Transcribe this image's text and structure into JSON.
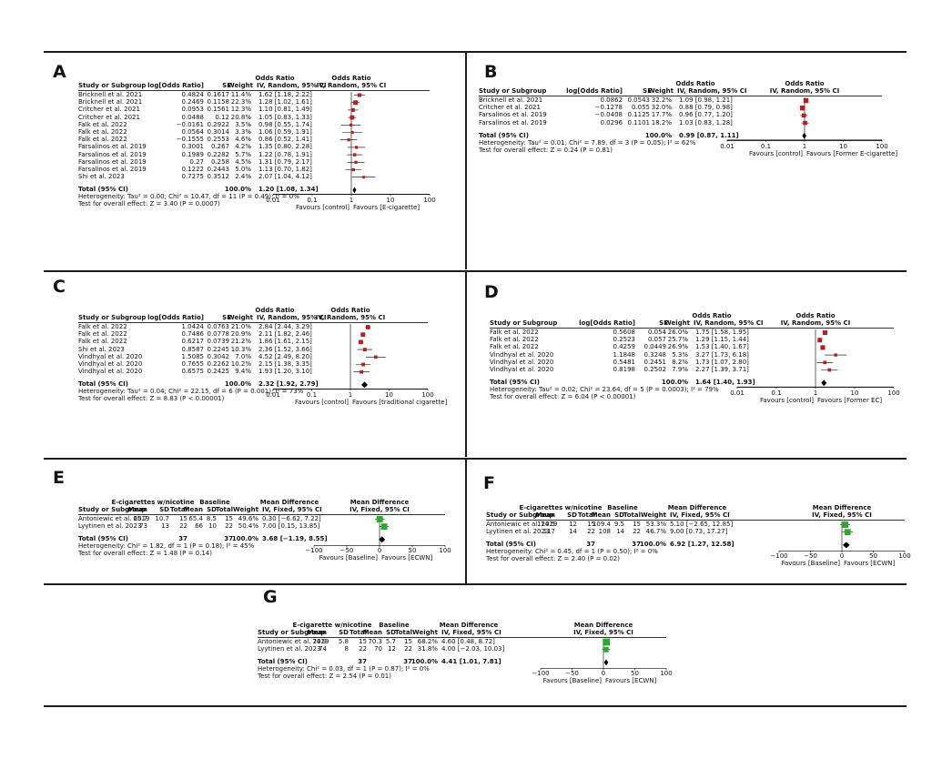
{
  "colors": {
    "rule": "#1a1a1a",
    "random_box": "#b42020",
    "fixed_box": "#2fa82f",
    "line": "#000000"
  },
  "panels": {
    "A": {
      "letter": "A",
      "model": "random",
      "header_over": "Odds Ratio",
      "plot_header_over": "Odds Ratio",
      "cols": [
        "Study or Subgroup",
        "log[Odds Ratio]",
        "SE",
        "Weight",
        "IV, Random, 95% CI",
        "IV, Random, 95% CI"
      ],
      "rows": [
        {
          "study": "Bricknell et al. 2021",
          "v1": "0.4824",
          "v2": "0.1617",
          "weight": "11.4%",
          "ci": "1.62 [1.18, 2.22]"
        },
        {
          "study": "Bricknell et al. 2021",
          "v1": "0.2469",
          "v2": "0.1158",
          "weight": "22.3%",
          "ci": "1.28 [1.02, 1.61]"
        },
        {
          "study": "Critcher et al. 2021",
          "v1": "0.0953",
          "v2": "0.1561",
          "weight": "12.3%",
          "ci": "1.10 [0.81, 1.49]"
        },
        {
          "study": "Critcher et al. 2021",
          "v1": "0.0488",
          "v2": "0.12",
          "weight": "20.8%",
          "ci": "1.05 [0.83, 1.33]"
        },
        {
          "study": "Falk et al. 2022",
          "v1": "−0.0161",
          "v2": "0.2922",
          "weight": "3.5%",
          "ci": "0.98 [0.55, 1.74]"
        },
        {
          "study": "Falk et al. 2022",
          "v1": "0.0564",
          "v2": "0.3014",
          "weight": "3.3%",
          "ci": "1.06 [0.59, 1.91]"
        },
        {
          "study": "Falk et al. 2022",
          "v1": "−0.1555",
          "v2": "0.2553",
          "weight": "4.6%",
          "ci": "0.86 [0.52, 1.41]"
        },
        {
          "study": "Farsalinos et al. 2019",
          "v1": "0.3001",
          "v2": "0.267",
          "weight": "4.2%",
          "ci": "1.35 [0.80, 2.28]"
        },
        {
          "study": "Farsalinos et al. 2019",
          "v1": "0.1989",
          "v2": "0.2282",
          "weight": "5.7%",
          "ci": "1.22 [0.78, 1.91]"
        },
        {
          "study": "Farsalinos et al. 2019",
          "v1": "0.27",
          "v2": "0.258",
          "weight": "4.5%",
          "ci": "1.31 [0.79, 2.17]"
        },
        {
          "study": "Farsalinos et al. 2019",
          "v1": "0.1222",
          "v2": "0.2443",
          "weight": "5.0%",
          "ci": "1.13 [0.70, 1.82]"
        },
        {
          "study": "Shi et al. 2023",
          "v1": "0.7275",
          "v2": "0.3512",
          "weight": "2.4%",
          "ci": "2.07 [1.04, 4.12]"
        }
      ],
      "total": {
        "label": "Total (95% CI)",
        "weight": "100.0%",
        "ci": "1.20 [1.08, 1.34]"
      },
      "heterogeneity": "Heterogeneity: Tau² = 0.00; Chi² = 10.47, df = 11 (P = 0.49); I² = 0%",
      "overall": "Test for overall effect: Z = 3.40 (P = 0.0007)",
      "axis_ticks": [
        "0.01",
        "0.1",
        "1",
        "10",
        "100"
      ],
      "axis_left": "Favours [control]",
      "axis_right": "Favours [E-cigarette]"
    },
    "B": {
      "letter": "B",
      "model": "random",
      "header_over": "Odds Ratio",
      "plot_header_over": "Odds Ratio",
      "cols": [
        "Study or Subgroup",
        "log[Odds Ratio]",
        "SE",
        "Weight",
        "IV, Random, 95% CI",
        "IV, Random, 95% CI"
      ],
      "rows": [
        {
          "study": "Bricknell et al. 2021",
          "v1": "0.0862",
          "v2": "0.0543",
          "weight": "32.2%",
          "ci": "1.09 [0.98, 1.21]"
        },
        {
          "study": "Critcher et al. 2021",
          "v1": "−0.1278",
          "v2": "0.055",
          "weight": "32.0%",
          "ci": "0.88 [0.79, 0.98]"
        },
        {
          "study": "Farsalinos et al. 2019",
          "v1": "−0.0408",
          "v2": "0.1125",
          "weight": "17.7%",
          "ci": "0.96 [0.77, 1.20]"
        },
        {
          "study": "Farsalinos et al. 2019",
          "v1": "0.0296",
          "v2": "0.1101",
          "weight": "18.2%",
          "ci": "1.03 [0.83, 1.28]"
        }
      ],
      "total": {
        "label": "Total (95% CI)",
        "weight": "100.0%",
        "ci": "0.99 [0.87, 1.11]"
      },
      "heterogeneity": "Heterogeneity: Tau² = 0.01; Chi² = 7.89, df = 3 (P = 0.05); I² = 62%",
      "overall": "Test for overall effect: Z = 0.24 (P = 0.81)",
      "axis_ticks": [
        "0.01",
        "0.1",
        "1",
        "10",
        "100"
      ],
      "axis_left": "Favours [control]",
      "axis_right": "Favours [Former E-cigarette]"
    },
    "C": {
      "letter": "C",
      "model": "random",
      "header_over": "Odds Ratio",
      "plot_header_over": "Odds Ratio",
      "cols": [
        "Study or Subgroup",
        "log[Odds Ratio]",
        "SE",
        "Weight",
        "IV, Random, 95% CI",
        "IV, Random, 95% CI"
      ],
      "rows": [
        {
          "study": "Falk et al. 2022",
          "v1": "1.0424",
          "v2": "0.0763",
          "weight": "21.0%",
          "ci": "2.84 [2.44, 3.29]"
        },
        {
          "study": "Falk et al. 2022",
          "v1": "0.7486",
          "v2": "0.0778",
          "weight": "20.9%",
          "ci": "2.11 [1.82, 2.46]"
        },
        {
          "study": "Falk et al. 2022",
          "v1": "0.6217",
          "v2": "0.0739",
          "weight": "21.2%",
          "ci": "1.86 [1.61, 2.15]"
        },
        {
          "study": "Shi et al. 2023",
          "v1": "0.8587",
          "v2": "0.2245",
          "weight": "10.3%",
          "ci": "2.36 [1.52, 3.66]"
        },
        {
          "study": "Vindhyal et al. 2020",
          "v1": "1.5085",
          "v2": "0.3042",
          "weight": "7.0%",
          "ci": "4.52 [2.49, 8.20]"
        },
        {
          "study": "Vindhyal et al. 2020",
          "v1": "0.7655",
          "v2": "0.2262",
          "weight": "10.2%",
          "ci": "2.15 [1.38, 3.35]"
        },
        {
          "study": "Vindhyal et al. 2020",
          "v1": "0.6575",
          "v2": "0.2425",
          "weight": "9.4%",
          "ci": "1.93 [1.20, 3.10]"
        }
      ],
      "total": {
        "label": "Total (95% CI)",
        "weight": "100.0%",
        "ci": "2.32 [1.92, 2.79]"
      },
      "heterogeneity": "Heterogeneity: Tau² = 0.04; Chi² = 22.15, df = 6 (P = 0.001); I² = 73%",
      "overall": "Test for overall effect: Z = 8.83 (P < 0.00001)",
      "axis_ticks": [
        "0.01",
        "0.1",
        "1",
        "10",
        "100"
      ],
      "axis_left": "Favours [control]",
      "axis_right": "Favours [traditional cigarette]"
    },
    "D": {
      "letter": "D",
      "model": "random",
      "header_over": "Odds Ratio",
      "plot_header_over": "Odds Ratio",
      "cols": [
        "Study or Subgroup",
        "log[Odds Ratio]",
        "SE",
        "Weight",
        "IV, Random, 95% CI",
        "IV, Random, 95% CI"
      ],
      "rows": [
        {
          "study": "Falk et al. 2022",
          "v1": "0.5608",
          "v2": "0.054",
          "weight": "26.0%",
          "ci": "1.75 [1.58, 1.95]"
        },
        {
          "study": "Falk et al. 2022",
          "v1": "0.2523",
          "v2": "0.057",
          "weight": "25.7%",
          "ci": "1.29 [1.15, 1.44]"
        },
        {
          "study": "Falk et al. 2022",
          "v1": "0.4259",
          "v2": "0.0449",
          "weight": "26.9%",
          "ci": "1.53 [1.40, 1.67]"
        },
        {
          "study": "Vindhyal et al. 2020",
          "v1": "1.1848",
          "v2": "0.3248",
          "weight": "5.3%",
          "ci": "3.27 [1.73, 6.18]"
        },
        {
          "study": "Vindhyal et al. 2020",
          "v1": "0.5481",
          "v2": "0.2451",
          "weight": "8.2%",
          "ci": "1.73 [1.07, 2.80]"
        },
        {
          "study": "Vindhyal et al. 2020",
          "v1": "0.8198",
          "v2": "0.2502",
          "weight": "7.9%",
          "ci": "2.27 [1.39, 3.71]"
        }
      ],
      "total": {
        "label": "Total (95% CI)",
        "weight": "100.0%",
        "ci": "1.64 [1.40, 1.93]"
      },
      "heterogeneity": "Heterogeneity: Tau² = 0.02; Chi² = 23.64, df = 5 (P = 0.0003); I² = 79%",
      "overall": "Test for overall effect: Z = 6.04 (P < 0.00001)",
      "axis_ticks": [
        "0.01",
        "0.1",
        "1",
        "10",
        "100"
      ],
      "axis_left": "Favours [control]",
      "axis_right": "Favours [Former EC]"
    },
    "E": {
      "letter": "E",
      "model": "fixed",
      "group1": "E-cigarettes w/nicotine",
      "group2": "Baseline",
      "header_over": "Mean Difference",
      "plot_header_over": "Mean Difference",
      "cols": [
        "Study or Subgroup",
        "Mean",
        "SD",
        "Total",
        "Mean",
        "SD",
        "Total",
        "Weight",
        "IV, Fixed, 95% CI",
        "IV, Fixed, 95% CI"
      ],
      "rows": [
        {
          "study": "Antoniewic et al. 2019",
          "m1": "65.7",
          "sd1": "10.7",
          "n1": "15",
          "m2": "65.4",
          "sd2": "8.5",
          "n2": "15",
          "weight": "49.6%",
          "ci": "0.30 [−6.62, 7.22]"
        },
        {
          "study": "Lyytinen et al. 2023",
          "m1": "73",
          "sd1": "13",
          "n1": "22",
          "m2": "66",
          "sd2": "10",
          "n2": "22",
          "weight": "50.4%",
          "ci": "7.00 [0.15, 13.85]"
        }
      ],
      "total": {
        "label": "Total (95% CI)",
        "n1": "37",
        "n2": "37",
        "weight": "100.0%",
        "ci": "3.68 [−1.19, 8.55]"
      },
      "heterogeneity": "Heterogeneity: Chi² = 1.82, df = 1 (P = 0.18); I² = 45%",
      "overall": "Test for overall effect: Z = 1.48 (P = 0.14)",
      "axis_ticks": [
        "−100",
        "−50",
        "0",
        "50",
        "100"
      ],
      "axis_left": "Favours [Baseline]",
      "axis_right": "Favours [ECWN]"
    },
    "F": {
      "letter": "F",
      "model": "fixed",
      "group1": "E-cigarettes w/nicotine",
      "group2": "Baseline",
      "header_over": "Mean Difference",
      "plot_header_over": "Mean Difference",
      "cols": [
        "Study or Subgroup",
        "Mean",
        "SD",
        "Total",
        "Mean",
        "SD",
        "Total",
        "Weight",
        "IV, Fixed, 95% CI",
        "IV, Fixed, 95% CI"
      ],
      "rows": [
        {
          "study": "Antoniewic et al. 2019",
          "m1": "114.5",
          "sd1": "12",
          "n1": "15",
          "m2": "109.4",
          "sd2": "9.5",
          "n2": "15",
          "weight": "53.3%",
          "ci": "5.10 [−2.65, 12.85]"
        },
        {
          "study": "Lyytinen et al. 2023",
          "m1": "117",
          "sd1": "14",
          "n1": "22",
          "m2": "108",
          "sd2": "14",
          "n2": "22",
          "weight": "46.7%",
          "ci": "9.00 [0.73, 17.27]"
        }
      ],
      "total": {
        "label": "Total (95% CI)",
        "n1": "37",
        "n2": "37",
        "weight": "100.0%",
        "ci": "6.92 [1.27, 12.58]"
      },
      "heterogeneity": "Heterogeneity: Chi² = 0.45, df = 1 (P = 0.50); I² = 0%",
      "overall": "Test for overall effect: Z = 2.40 (P = 0.02)",
      "axis_ticks": [
        "−100",
        "−50",
        "0",
        "50",
        "100"
      ],
      "axis_left": "Favours [Baseline]",
      "axis_right": "Favours [ECWN]"
    },
    "G": {
      "letter": "G",
      "model": "fixed",
      "group1": "E-cigarette w/nicotine",
      "group2": "Baseline",
      "header_over": "Mean Difference",
      "plot_header_over": "Mean Difference",
      "cols": [
        "Study or Subgroup",
        "Mean",
        "SD",
        "Total",
        "Mean",
        "SD",
        "Total",
        "Weight",
        "IV, Fixed, 95% CI",
        "IV, Fixed, 95% CI"
      ],
      "rows": [
        {
          "study": "Antoniewic et al. 2019",
          "m1": "74.9",
          "sd1": "5.8",
          "n1": "15",
          "m2": "70.3",
          "sd2": "5.7",
          "n2": "15",
          "weight": "68.2%",
          "ci": "4.60 [0.48, 8.72]"
        },
        {
          "study": "Lyytinen et al. 2023",
          "m1": "74",
          "sd1": "8",
          "n1": "22",
          "m2": "70",
          "sd2": "12",
          "n2": "22",
          "weight": "31.8%",
          "ci": "4.00 [−2.03, 10.03]"
        }
      ],
      "total": {
        "label": "Total (95% CI)",
        "n1": "37",
        "n2": "37",
        "weight": "100.0%",
        "ci": "4.41 [1.01, 7.81]"
      },
      "heterogeneity": "Heterogeneity: Chi² = 0.03, df = 1 (P = 0.87); I² = 0%",
      "overall": "Test for overall effect: Z = 2.54 (P = 0.01)",
      "axis_ticks": [
        "−100",
        "−50",
        "0",
        "50",
        "100"
      ],
      "axis_left": "Favours [Baseline]",
      "axis_right": "Favours [ECWN]"
    }
  },
  "chart_data": [
    {
      "type": "scatter",
      "panel": "A",
      "measure": "Odds Ratio",
      "scale": "log",
      "xlim": [
        0.01,
        100
      ],
      "ticks": [
        0.01,
        0.1,
        1,
        10,
        100
      ],
      "points": [
        [
          1.62,
          1.18,
          2.22,
          11.4
        ],
        [
          1.28,
          1.02,
          1.61,
          22.3
        ],
        [
          1.1,
          0.81,
          1.49,
          12.3
        ],
        [
          1.05,
          0.83,
          1.33,
          20.8
        ],
        [
          0.98,
          0.55,
          1.74,
          3.5
        ],
        [
          1.06,
          0.59,
          1.91,
          3.3
        ],
        [
          0.86,
          0.52,
          1.41,
          4.6
        ],
        [
          1.35,
          0.8,
          2.28,
          4.2
        ],
        [
          1.22,
          0.78,
          1.91,
          5.7
        ],
        [
          1.31,
          0.79,
          2.17,
          4.5
        ],
        [
          1.13,
          0.7,
          1.82,
          5.0
        ],
        [
          2.07,
          1.04,
          4.12,
          2.4
        ]
      ],
      "total": [
        1.2,
        1.08,
        1.34
      ]
    },
    {
      "type": "scatter",
      "panel": "B",
      "measure": "Odds Ratio",
      "scale": "log",
      "xlim": [
        0.01,
        100
      ],
      "ticks": [
        0.01,
        0.1,
        1,
        10,
        100
      ],
      "points": [
        [
          1.09,
          0.98,
          1.21,
          32.2
        ],
        [
          0.88,
          0.79,
          0.98,
          32.0
        ],
        [
          0.96,
          0.77,
          1.2,
          17.7
        ],
        [
          1.03,
          0.83,
          1.28,
          18.2
        ]
      ],
      "total": [
        0.99,
        0.87,
        1.11
      ]
    },
    {
      "type": "scatter",
      "panel": "C",
      "measure": "Odds Ratio",
      "scale": "log",
      "xlim": [
        0.01,
        100
      ],
      "ticks": [
        0.01,
        0.1,
        1,
        10,
        100
      ],
      "points": [
        [
          2.84,
          2.44,
          3.29,
          21.0
        ],
        [
          2.11,
          1.82,
          2.46,
          20.9
        ],
        [
          1.86,
          1.61,
          2.15,
          21.2
        ],
        [
          2.36,
          1.52,
          3.66,
          10.3
        ],
        [
          4.52,
          2.49,
          8.2,
          7.0
        ],
        [
          2.15,
          1.38,
          3.35,
          10.2
        ],
        [
          1.93,
          1.2,
          3.1,
          9.4
        ]
      ],
      "total": [
        2.32,
        1.92,
        2.79
      ]
    },
    {
      "type": "scatter",
      "panel": "D",
      "measure": "Odds Ratio",
      "scale": "log",
      "xlim": [
        0.01,
        100
      ],
      "ticks": [
        0.01,
        0.1,
        1,
        10,
        100
      ],
      "points": [
        [
          1.75,
          1.58,
          1.95,
          26.0
        ],
        [
          1.29,
          1.15,
          1.44,
          25.7
        ],
        [
          1.53,
          1.4,
          1.67,
          26.9
        ],
        [
          3.27,
          1.73,
          6.18,
          5.3
        ],
        [
          1.73,
          1.07,
          2.8,
          8.2
        ],
        [
          2.27,
          1.39,
          3.71,
          7.9
        ]
      ],
      "total": [
        1.64,
        1.4,
        1.93
      ]
    },
    {
      "type": "scatter",
      "panel": "E",
      "measure": "Mean Difference",
      "scale": "linear",
      "xlim": [
        -100,
        100
      ],
      "ticks": [
        -100,
        -50,
        0,
        50,
        100
      ],
      "points": [
        [
          0.3,
          -6.62,
          7.22,
          49.6
        ],
        [
          7.0,
          0.15,
          13.85,
          50.4
        ]
      ],
      "total": [
        3.68,
        -1.19,
        8.55
      ]
    },
    {
      "type": "scatter",
      "panel": "F",
      "measure": "Mean Difference",
      "scale": "linear",
      "xlim": [
        -100,
        100
      ],
      "ticks": [
        -100,
        -50,
        0,
        50,
        100
      ],
      "points": [
        [
          5.1,
          -2.65,
          12.85,
          53.3
        ],
        [
          9.0,
          0.73,
          17.27,
          46.7
        ]
      ],
      "total": [
        6.92,
        1.27,
        12.58
      ]
    },
    {
      "type": "scatter",
      "panel": "G",
      "measure": "Mean Difference",
      "scale": "linear",
      "xlim": [
        -100,
        100
      ],
      "ticks": [
        -100,
        -50,
        0,
        50,
        100
      ],
      "points": [
        [
          4.6,
          0.48,
          8.72,
          68.2
        ],
        [
          4.0,
          -2.03,
          10.03,
          31.8
        ]
      ],
      "total": [
        4.41,
        1.01,
        7.81
      ]
    }
  ]
}
